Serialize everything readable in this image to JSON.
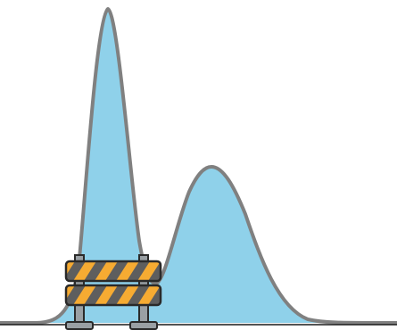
{
  "illustration": {
    "kind": "bimodal-density-curve-with-barricade",
    "colors": {
      "curve_fill": "#8fd1ea",
      "curve_stroke": "#808080",
      "baseline": "#1a1a1a",
      "barricade_stripe_orange": "#f6ab32",
      "barricade_stripe_dark": "#5e5e5e",
      "barricade_outline": "#2a2a2a",
      "barricade_post": "#9aa0a4"
    }
  }
}
